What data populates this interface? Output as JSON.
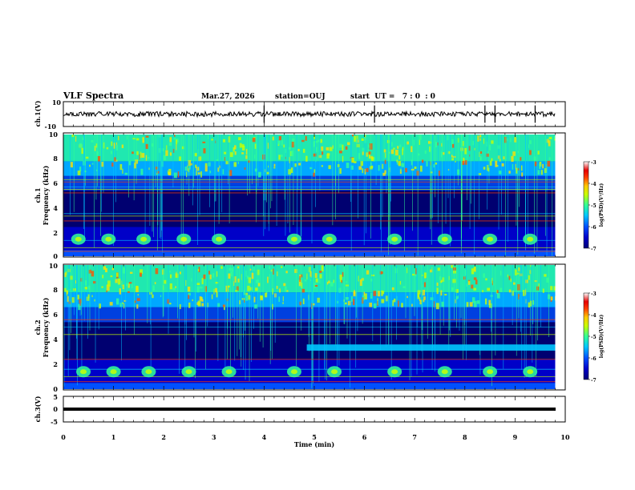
{
  "header": {
    "title": "VLF Spectra",
    "date": "Mar.27, 2026",
    "station": "station=OUJ",
    "start": "start  UT =   7 : 0  : 0"
  },
  "colors": {
    "axis": "#000000",
    "background": "#ffffff",
    "colormap": [
      "#000078",
      "#0000c8",
      "#0050ff",
      "#00c8ff",
      "#32ff96",
      "#c8ff00",
      "#ffc800",
      "#ff3c00",
      "#e60000",
      "#ffffff"
    ]
  },
  "chart_data": [
    {
      "type": "line",
      "name": "ch1-waveform",
      "title": "VLF Spectra",
      "ylabel": "ch.1(V)",
      "xlabel": "",
      "xlim": [
        0,
        10
      ],
      "ylim": [
        -10,
        10
      ],
      "yticks": [
        "10",
        "-10"
      ],
      "series": [
        {
          "name": "ch.1",
          "mean": 0,
          "band": [
            -2,
            2
          ],
          "spikes_min": [
            4.0,
            6.2,
            8.4,
            8.6,
            9.4
          ]
        }
      ]
    },
    {
      "type": "heatmap",
      "name": "ch1-spectrogram",
      "ylabel": "ch.1",
      "ylabel2": "Frequency (kHz)",
      "xlim": [
        0,
        10
      ],
      "ylim": [
        0,
        10
      ],
      "data_extent_min": 9.8,
      "yticks": [
        "0",
        "2",
        "4",
        "6",
        "8",
        "10"
      ],
      "colorbar": {
        "label": "log(PSD)(V²/Hz)",
        "range": [
          -7,
          -3
        ],
        "ticks": [
          "-3",
          "-4",
          "-5",
          "-6",
          "-7"
        ]
      },
      "bursts_min": [
        0.3,
        0.9,
        1.6,
        2.4,
        3.1,
        4.6,
        5.3,
        6.6,
        7.6,
        8.5,
        9.3
      ],
      "lines_khz": [
        0.4,
        0.7,
        1.3,
        2.9,
        3.3,
        3.5,
        5.2,
        5.5,
        5.7,
        6.1,
        6.3
      ]
    },
    {
      "type": "heatmap",
      "name": "ch2-spectrogram",
      "ylabel": "ch.2",
      "ylabel2": "Frequency (kHz)",
      "xlim": [
        0,
        10
      ],
      "ylim": [
        0,
        10
      ],
      "data_extent_min": 9.8,
      "yticks": [
        "0",
        "2",
        "4",
        "6",
        "8",
        "10"
      ],
      "colorbar": {
        "label": "log(PSD)(V²/Hz)",
        "range": [
          -7,
          -3
        ],
        "ticks": [
          "-3",
          "-4",
          "-5",
          "-6",
          "-7"
        ]
      },
      "bursts_min": [
        0.4,
        1.0,
        1.7,
        2.5,
        3.3,
        4.6,
        5.4,
        6.6,
        7.6,
        8.5,
        9.3
      ],
      "band_khz": [
        3.1,
        3.6
      ],
      "band_start_min": 4.85,
      "lines_khz": [
        0.6,
        1.0,
        1.6,
        2.4,
        4.4,
        5.0,
        5.6
      ]
    },
    {
      "type": "line",
      "name": "ch3-waveform",
      "ylabel": "ch.3(V)",
      "xlabel": "Time (min)",
      "xlim": [
        0,
        10
      ],
      "ylim": [
        -5,
        5
      ],
      "xticks": [
        "0",
        "1",
        "2",
        "3",
        "4",
        "5",
        "6",
        "7",
        "8",
        "9",
        "10"
      ],
      "yticks": [
        "5",
        "0",
        "-5"
      ],
      "series": [
        {
          "name": "ch.3",
          "mean": -1.2,
          "band": [
            -1.6,
            -0.8
          ]
        }
      ]
    }
  ]
}
